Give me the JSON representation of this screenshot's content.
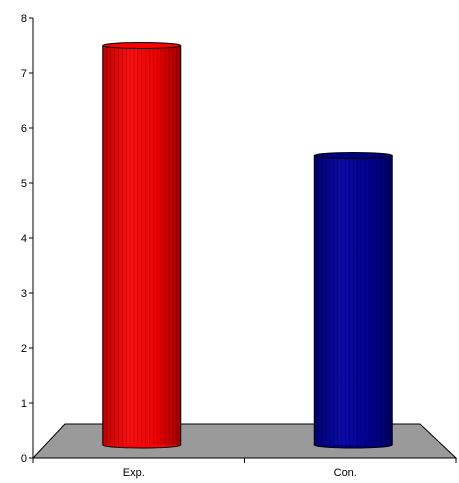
{
  "chart_data": {
    "type": "bar",
    "style": "3d-cylinder",
    "categories": [
      "Exp.",
      "Con."
    ],
    "values": [
      7.5,
      5.5
    ],
    "colors": [
      "#ff0000",
      "#000080"
    ],
    "floor_color": "#9a9a9a",
    "ylim": [
      0,
      8
    ],
    "yticks": [
      "0",
      "1",
      "2",
      "3",
      "4",
      "5",
      "6",
      "7",
      "8"
    ],
    "grid": false,
    "legend": "none",
    "title": "",
    "xlabel": "",
    "ylabel": ""
  }
}
